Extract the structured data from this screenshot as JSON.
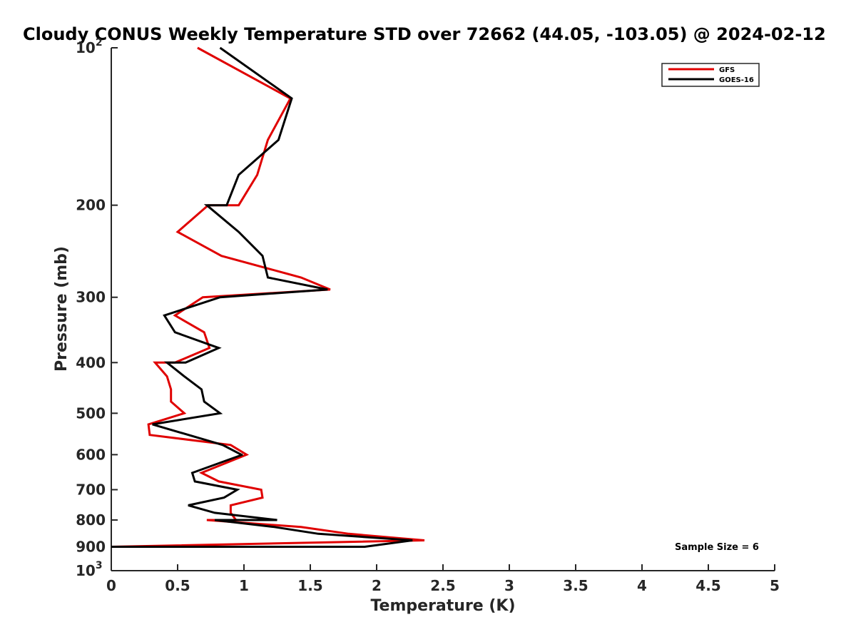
{
  "chart_data": {
    "type": "line",
    "title": "Cloudy CONUS Weekly Temperature STD over 72662 (44.05, -103.05) @ 2024-02-12",
    "xlabel": "Temperature (K)",
    "ylabel": "Pressure (mb)",
    "xlim": [
      0,
      5
    ],
    "ylim": [
      100,
      1000
    ],
    "y_scale": "log",
    "y_reversed": true,
    "grid": false,
    "legend_position": "top-right",
    "x_ticks": [
      "0",
      "0.5",
      "1",
      "1.5",
      "2",
      "2.5",
      "3",
      "3.5",
      "4",
      "4.5",
      "5"
    ],
    "y_ticks": [
      {
        "value": 100,
        "base": "10",
        "exp": "2"
      },
      {
        "value": 200,
        "label": "200"
      },
      {
        "value": 300,
        "label": "300"
      },
      {
        "value": 400,
        "label": "400"
      },
      {
        "value": 500,
        "label": "500"
      },
      {
        "value": 600,
        "label": "600"
      },
      {
        "value": 700,
        "label": "700"
      },
      {
        "value": 800,
        "label": "800"
      },
      {
        "value": 900,
        "label": "900"
      },
      {
        "value": 1000,
        "base": "10",
        "exp": "3"
      }
    ],
    "annotation": "Sample Size = 6",
    "series": [
      {
        "name": "GFS",
        "color": "#e00000",
        "points": [
          [
            0.65,
            100
          ],
          [
            1.35,
            125
          ],
          [
            1.18,
            150
          ],
          [
            1.1,
            175
          ],
          [
            0.96,
            200
          ],
          [
            0.73,
            200
          ],
          [
            0.5,
            225
          ],
          [
            0.83,
            250
          ],
          [
            1.43,
            275
          ],
          [
            1.65,
            290
          ],
          [
            0.69,
            300
          ],
          [
            0.48,
            325
          ],
          [
            0.7,
            350
          ],
          [
            0.74,
            375
          ],
          [
            0.48,
            400
          ],
          [
            0.33,
            400
          ],
          [
            0.42,
            425
          ],
          [
            0.45,
            450
          ],
          [
            0.45,
            475
          ],
          [
            0.55,
            500
          ],
          [
            0.55,
            500
          ],
          [
            0.28,
            525
          ],
          [
            0.29,
            550
          ],
          [
            0.9,
            575
          ],
          [
            1.02,
            600
          ],
          [
            0.68,
            650
          ],
          [
            0.81,
            675
          ],
          [
            1.13,
            700
          ],
          [
            1.14,
            725
          ],
          [
            0.9,
            750
          ],
          [
            0.9,
            775
          ],
          [
            0.94,
            800
          ],
          [
            0.72,
            800
          ],
          [
            1.43,
            825
          ],
          [
            1.79,
            850
          ],
          [
            2.36,
            875
          ],
          [
            0.0,
            900
          ]
        ]
      },
      {
        "name": "GOES-16",
        "color": "#000000",
        "points": [
          [
            0.82,
            100
          ],
          [
            1.36,
            125
          ],
          [
            1.26,
            150
          ],
          [
            0.96,
            175
          ],
          [
            0.87,
            200
          ],
          [
            0.72,
            200
          ],
          [
            0.96,
            225
          ],
          [
            1.14,
            250
          ],
          [
            1.18,
            275
          ],
          [
            1.63,
            290
          ],
          [
            0.82,
            300
          ],
          [
            0.4,
            325
          ],
          [
            0.48,
            350
          ],
          [
            0.81,
            375
          ],
          [
            0.56,
            400
          ],
          [
            0.42,
            400
          ],
          [
            0.55,
            425
          ],
          [
            0.68,
            450
          ],
          [
            0.7,
            475
          ],
          [
            0.82,
            500
          ],
          [
            0.82,
            500
          ],
          [
            0.31,
            525
          ],
          [
            0.84,
            575
          ],
          [
            0.98,
            600
          ],
          [
            0.99,
            600
          ],
          [
            0.61,
            650
          ],
          [
            0.63,
            675
          ],
          [
            0.95,
            700
          ],
          [
            0.85,
            725
          ],
          [
            0.58,
            750
          ],
          [
            0.78,
            775
          ],
          [
            1.25,
            800
          ],
          [
            0.78,
            800
          ],
          [
            1.23,
            825
          ],
          [
            1.56,
            850
          ],
          [
            2.27,
            875
          ],
          [
            1.91,
            900
          ],
          [
            0.0,
            900
          ]
        ]
      }
    ]
  }
}
